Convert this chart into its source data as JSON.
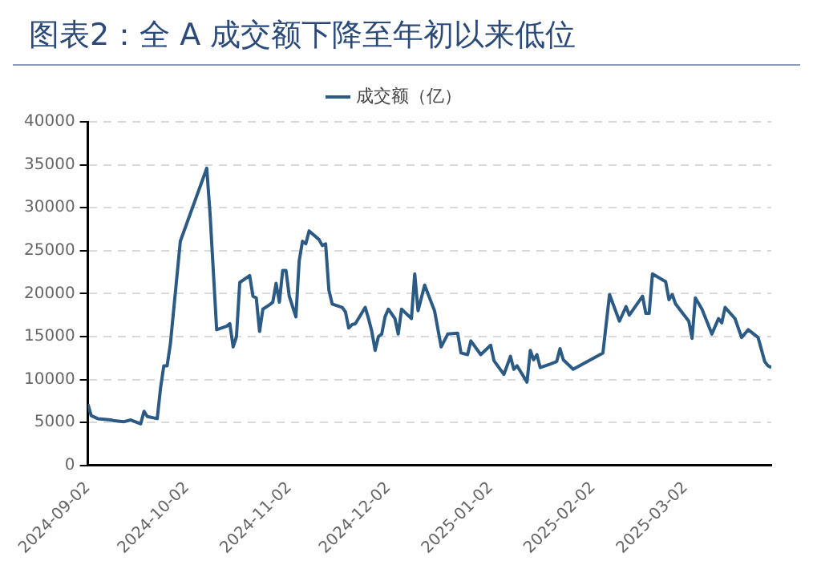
{
  "chart_data": {
    "type": "line",
    "title": "图表2：全 A 成交额下降至年初以来低位",
    "series": [
      {
        "name": "成交额（亿）",
        "color": "#2b5b84",
        "x": [
          "2024-09-02",
          "2024-09-03",
          "2024-09-05",
          "2024-09-09",
          "2024-09-10",
          "2024-09-13",
          "2024-09-15",
          "2024-09-18",
          "2024-09-19",
          "2024-09-20",
          "2024-09-23",
          "2024-09-24",
          "2024-09-25",
          "2024-09-26",
          "2024-09-27",
          "2024-09-30",
          "2024-10-08",
          "2024-10-09",
          "2024-10-11",
          "2024-10-14",
          "2024-10-15",
          "2024-10-16",
          "2024-10-17",
          "2024-10-18",
          "2024-10-21",
          "2024-10-22",
          "2024-10-23",
          "2024-10-24",
          "2024-10-25",
          "2024-10-27",
          "2024-10-28",
          "2024-10-29",
          "2024-10-30",
          "2024-10-31",
          "2024-11-01",
          "2024-11-02",
          "2024-11-04",
          "2024-11-05",
          "2024-11-06",
          "2024-11-07",
          "2024-11-08",
          "2024-11-11",
          "2024-11-12",
          "2024-11-13",
          "2024-11-14",
          "2024-11-15",
          "2024-11-18",
          "2024-11-19",
          "2024-11-20",
          "2024-11-21",
          "2024-11-22",
          "2024-11-25",
          "2024-11-26",
          "2024-11-27",
          "2024-11-28",
          "2024-11-29",
          "2024-11-30",
          "2024-12-01",
          "2024-12-02",
          "2024-12-04",
          "2024-12-05",
          "2024-12-06",
          "2024-12-09",
          "2024-12-10",
          "2024-12-11",
          "2024-12-13",
          "2024-12-16",
          "2024-12-18",
          "2024-12-20",
          "2024-12-23",
          "2024-12-24",
          "2024-12-26",
          "2024-12-27",
          "2024-12-30",
          "2025-01-02",
          "2025-01-03",
          "2025-01-06",
          "2025-01-08",
          "2025-01-09",
          "2025-01-10",
          "2025-01-13",
          "2025-01-14",
          "2025-01-15",
          "2025-01-16",
          "2025-01-17",
          "2025-01-20",
          "2025-01-22",
          "2025-01-23",
          "2025-01-24",
          "2025-01-27",
          "2025-02-05",
          "2025-02-07",
          "2025-02-10",
          "2025-02-12",
          "2025-02-13",
          "2025-02-17",
          "2025-02-18",
          "2025-02-19",
          "2025-02-20",
          "2025-02-24",
          "2025-02-25",
          "2025-02-26",
          "2025-02-27",
          "2025-03-03",
          "2025-03-04",
          "2025-03-05",
          "2025-03-07",
          "2025-03-10",
          "2025-03-12",
          "2025-03-13",
          "2025-03-14",
          "2025-03-17",
          "2025-03-19",
          "2025-03-21",
          "2025-03-24",
          "2025-03-26",
          "2025-03-27",
          "2025-03-28"
        ],
        "values": [
          7150,
          5800,
          5450,
          5300,
          5200,
          5100,
          5300,
          4850,
          6300,
          5700,
          5450,
          9000,
          11600,
          11600,
          14200,
          26100,
          34600,
          29300,
          15800,
          16200,
          16500,
          13800,
          15000,
          21300,
          22100,
          19700,
          19500,
          15600,
          18200,
          18700,
          19000,
          21200,
          19000,
          22700,
          22700,
          19700,
          17300,
          23800,
          26100,
          25800,
          27300,
          26300,
          25600,
          25800,
          20400,
          18800,
          18400,
          17900,
          16000,
          16400,
          16500,
          18400,
          17100,
          15600,
          13400,
          15000,
          15300,
          17300,
          18200,
          17100,
          15300,
          18200,
          17100,
          22300,
          18000,
          21000,
          18000,
          13800,
          15300,
          15400,
          13100,
          12900,
          14500,
          12900,
          14000,
          12200,
          10600,
          12700,
          11200,
          11600,
          9700,
          13400,
          12300,
          12900,
          11400,
          11800,
          12100,
          13600,
          12300,
          11200,
          13100,
          19900,
          16800,
          18500,
          17500,
          19700,
          17700,
          17700,
          22300,
          21400,
          19300,
          19900,
          18800,
          16800,
          14800,
          19500,
          18200,
          15300,
          17100,
          16600,
          18400,
          17100,
          14900,
          15800,
          14900,
          12100,
          11600,
          11400
        ]
      }
    ],
    "xlim": [
      "2024-09-02",
      "2025-03-28"
    ],
    "xticks": [
      "2024-09-02",
      "2024-10-02",
      "2024-11-02",
      "2024-12-02",
      "2025-01-02",
      "2025-02-02",
      "2025-03-02"
    ],
    "ylim": [
      0,
      40000
    ],
    "yticks": [
      0,
      5000,
      10000,
      15000,
      20000,
      25000,
      30000,
      35000,
      40000
    ],
    "grid": "y",
    "legend": "top",
    "marker": "none",
    "line_style": "solid"
  }
}
